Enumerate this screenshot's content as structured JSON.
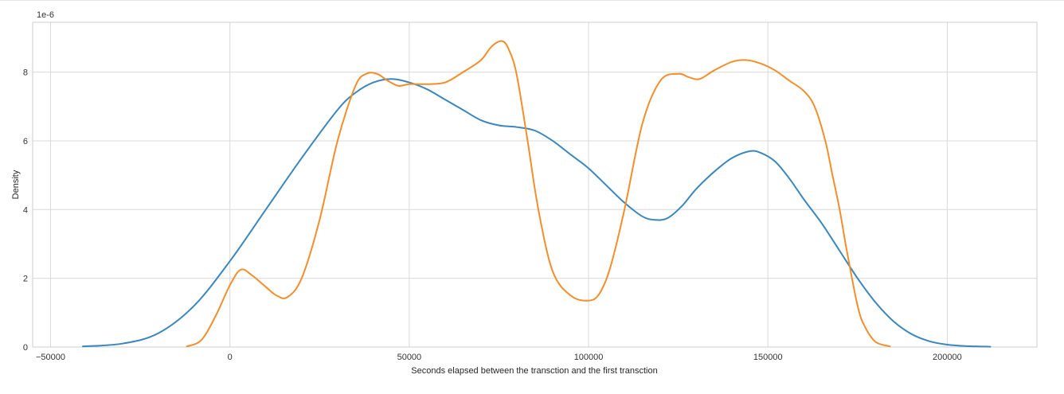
{
  "chart_data": {
    "type": "line",
    "title": "",
    "xlabel": "Seconds elapsed between the transction and the first transction",
    "ylabel": "Density",
    "y_offset_text": "1e-6",
    "xlim": [
      -55000,
      225000
    ],
    "ylim": [
      0,
      9.45
    ],
    "xticks": [
      -50000,
      0,
      50000,
      100000,
      150000,
      200000
    ],
    "xtick_labels": [
      "−50000",
      "0",
      "50000",
      "100000",
      "150000",
      "200000"
    ],
    "yticks": [
      0,
      2,
      4,
      6,
      8
    ],
    "ytick_labels": [
      "0",
      "2",
      "4",
      "6",
      "8"
    ],
    "grid": true,
    "legend": "none",
    "series": [
      {
        "color": "#3a87bd",
        "x": [
          -41000,
          -30000,
          -20000,
          -10000,
          0,
          10000,
          20000,
          30000,
          35000,
          40000,
          45000,
          50000,
          55000,
          60000,
          65000,
          70000,
          75000,
          80000,
          85000,
          90000,
          95000,
          100000,
          105000,
          110000,
          115000,
          118500,
          122000,
          126000,
          130000,
          135000,
          140000,
          145000,
          148000,
          152000,
          156000,
          160000,
          165000,
          170000,
          175000,
          180000,
          185000,
          190000,
          195000,
          200000,
          205000,
          212000
        ],
        "y": [
          0.02,
          0.1,
          0.4,
          1.2,
          2.5,
          4.0,
          5.5,
          6.9,
          7.4,
          7.7,
          7.8,
          7.7,
          7.5,
          7.2,
          6.9,
          6.6,
          6.45,
          6.4,
          6.3,
          6.0,
          5.6,
          5.2,
          4.7,
          4.2,
          3.8,
          3.7,
          3.75,
          4.1,
          4.6,
          5.1,
          5.5,
          5.7,
          5.65,
          5.4,
          4.9,
          4.3,
          3.6,
          2.8,
          2.0,
          1.3,
          0.75,
          0.38,
          0.17,
          0.07,
          0.03,
          0.01
        ]
      },
      {
        "color": "#f28e2b",
        "x": [
          -12000,
          -8000,
          -4000,
          0,
          3000,
          6000,
          10000,
          13000,
          16000,
          20000,
          25000,
          30000,
          35000,
          38000,
          41000,
          44000,
          47000,
          50000,
          55000,
          60000,
          65000,
          70000,
          73000,
          76000,
          78000,
          80000,
          83000,
          86000,
          90000,
          95000,
          100000,
          103000,
          106000,
          110000,
          115000,
          120000,
          125000,
          128000,
          131000,
          135000,
          140000,
          144000,
          148000,
          152000,
          156000,
          160000,
          163000,
          166000,
          168000,
          170000,
          172000,
          175000,
          177000,
          180000,
          184000
        ],
        "y": [
          0.02,
          0.2,
          0.9,
          1.8,
          2.25,
          2.1,
          1.75,
          1.5,
          1.45,
          2.0,
          3.7,
          6.0,
          7.6,
          7.95,
          7.95,
          7.75,
          7.6,
          7.65,
          7.65,
          7.7,
          8.0,
          8.35,
          8.75,
          8.9,
          8.6,
          7.9,
          6.0,
          4.0,
          2.2,
          1.5,
          1.35,
          1.55,
          2.3,
          4.0,
          6.5,
          7.75,
          7.95,
          7.85,
          7.8,
          8.05,
          8.3,
          8.35,
          8.25,
          8.05,
          7.75,
          7.45,
          7.0,
          6.0,
          5.0,
          4.0,
          2.8,
          1.2,
          0.6,
          0.15,
          0.02
        ]
      }
    ]
  }
}
